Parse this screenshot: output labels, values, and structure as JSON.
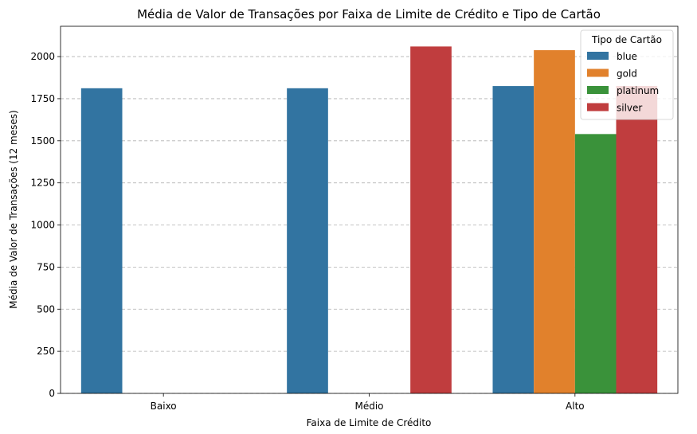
{
  "chart_data": {
    "type": "bar",
    "title": "Média de Valor de Transações por Faixa de Limite de Crédito e Tipo de Cartão",
    "xlabel": "Faixa de Limite de Crédito",
    "ylabel": "Média de Valor de Transações (12 meses)",
    "categories": [
      "Baixo",
      "Médio",
      "Alto"
    ],
    "ylim": [
      0,
      2180
    ],
    "yticks": [
      0,
      250,
      500,
      750,
      1000,
      1250,
      1500,
      1750,
      2000
    ],
    "grid": "y-dashed",
    "legend": {
      "title": "Tipo de Cartão",
      "placement": "top-right"
    },
    "series": [
      {
        "name": "blue",
        "color": "#3274a1",
        "values": [
          1812,
          1812,
          1825
        ]
      },
      {
        "name": "gold",
        "color": "#e1812c",
        "values": [
          null,
          null,
          2038
        ]
      },
      {
        "name": "platinum",
        "color": "#3a923a",
        "values": [
          null,
          null,
          1540
        ]
      },
      {
        "name": "silver",
        "color": "#c03d3e",
        "values": [
          null,
          2060,
          1825
        ]
      }
    ]
  }
}
